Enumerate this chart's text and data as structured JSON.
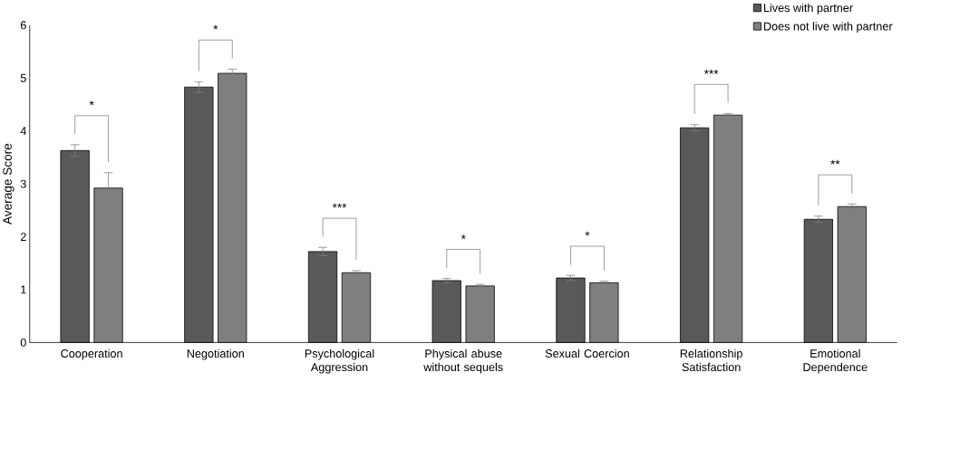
{
  "chart_data": {
    "type": "bar",
    "ylabel": "Average Score",
    "categories": [
      "Cooperation",
      "Negotiation",
      "Psychological Aggression",
      "Physical abuse without sequels",
      "Sexual Coercion",
      "Relationship Satisfaction",
      "Emotional Dependence"
    ],
    "series": [
      {
        "name": "Lives with partner",
        "color": "#595959",
        "values": [
          3.63,
          4.83,
          1.72,
          1.17,
          1.22,
          4.06,
          2.33
        ],
        "errors": [
          0.11,
          0.1,
          0.08,
          0.04,
          0.05,
          0.06,
          0.06
        ]
      },
      {
        "name": "Does not live with partner",
        "color": "#7f7f7f",
        "values": [
          2.92,
          5.09,
          1.32,
          1.07,
          1.13,
          4.3,
          2.57
        ],
        "errors": [
          0.29,
          0.08,
          0.04,
          0.03,
          0.03,
          0.03,
          0.05
        ]
      }
    ],
    "ylim": [
      0,
      6
    ],
    "yticks": [
      0,
      1,
      2,
      3,
      4,
      5,
      6
    ],
    "grid": false,
    "legend": "top right",
    "annotations": [
      "*",
      "*",
      "***",
      "*",
      "*",
      "***",
      "**"
    ]
  }
}
